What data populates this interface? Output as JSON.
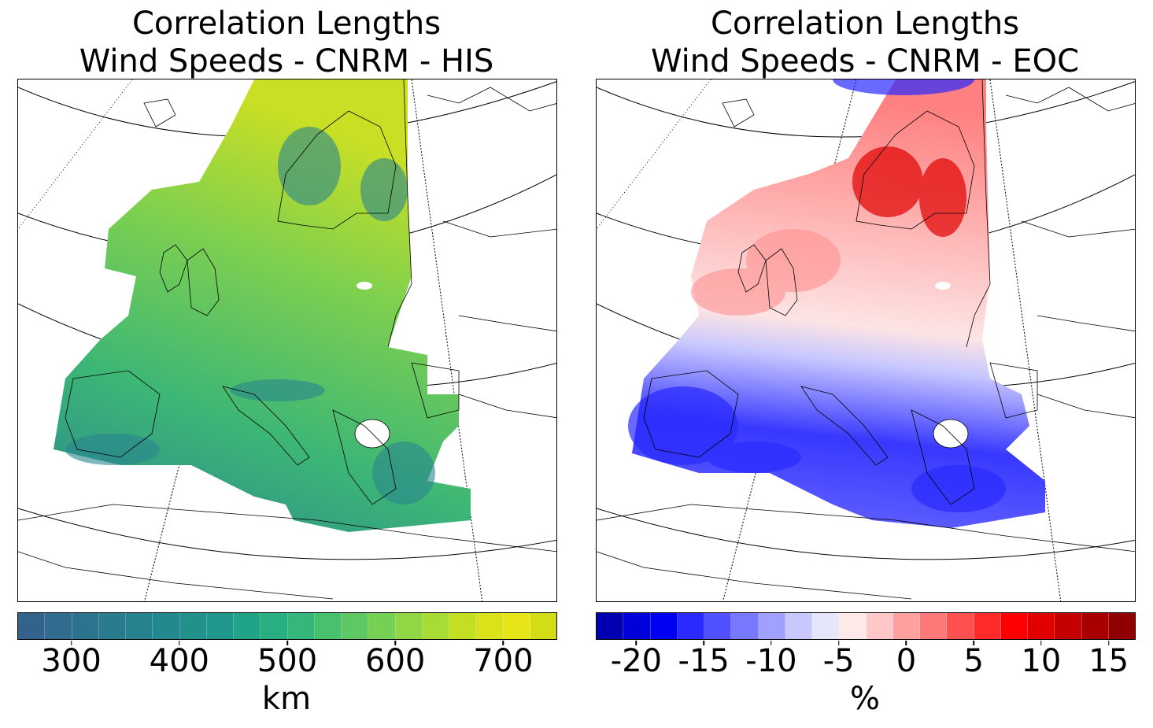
{
  "panels": [
    {
      "title_line1": "Correlation Lengths",
      "title_line2": "Wind Speeds - CNRM - HIS",
      "unit": "km",
      "colorbar": {
        "min": 250,
        "max": 750,
        "ticks": [
          "300",
          "400",
          "500",
          "600",
          "700"
        ],
        "tick_values": [
          300,
          400,
          500,
          600,
          700
        ],
        "colors": [
          "#33638d",
          "#2f6c8e",
          "#2c738e",
          "#297b8e",
          "#26828e",
          "#23898e",
          "#21918c",
          "#1f988b",
          "#20a386",
          "#28ae80",
          "#35b779",
          "#48c16e",
          "#5ec962",
          "#75d054",
          "#8fd744",
          "#a8db34",
          "#c2df23",
          "#dae319",
          "#e7e419",
          "#d2dd18"
        ]
      },
      "palette": {
        "low": "#2a7b8e",
        "mid": "#3bbb75",
        "high": "#c8df23"
      }
    },
    {
      "title_line1": "Correlation Lengths",
      "title_line2": "Wind Speeds - CNRM - EOC",
      "unit": "%",
      "colorbar": {
        "min": -23,
        "max": 17,
        "ticks": [
          "-20",
          "-15",
          "-10",
          "-5",
          "0",
          "5",
          "10",
          "15"
        ],
        "tick_values": [
          -20,
          -15,
          -10,
          -5,
          0,
          5,
          10,
          15
        ],
        "colors": [
          "#0000b0",
          "#0000d8",
          "#0000f5",
          "#2a2aff",
          "#5050ff",
          "#7878ff",
          "#a0a0ff",
          "#c8c8ff",
          "#e6e6fa",
          "#ffe8e8",
          "#ffc8c8",
          "#ffa0a0",
          "#ff7878",
          "#ff5050",
          "#ff2a2a",
          "#ff0000",
          "#e00000",
          "#c40000",
          "#a80000",
          "#900000"
        ]
      },
      "palette": {
        "low": "#2a2aff",
        "mid": "#f4e4ee",
        "high": "#e00000"
      }
    }
  ]
}
